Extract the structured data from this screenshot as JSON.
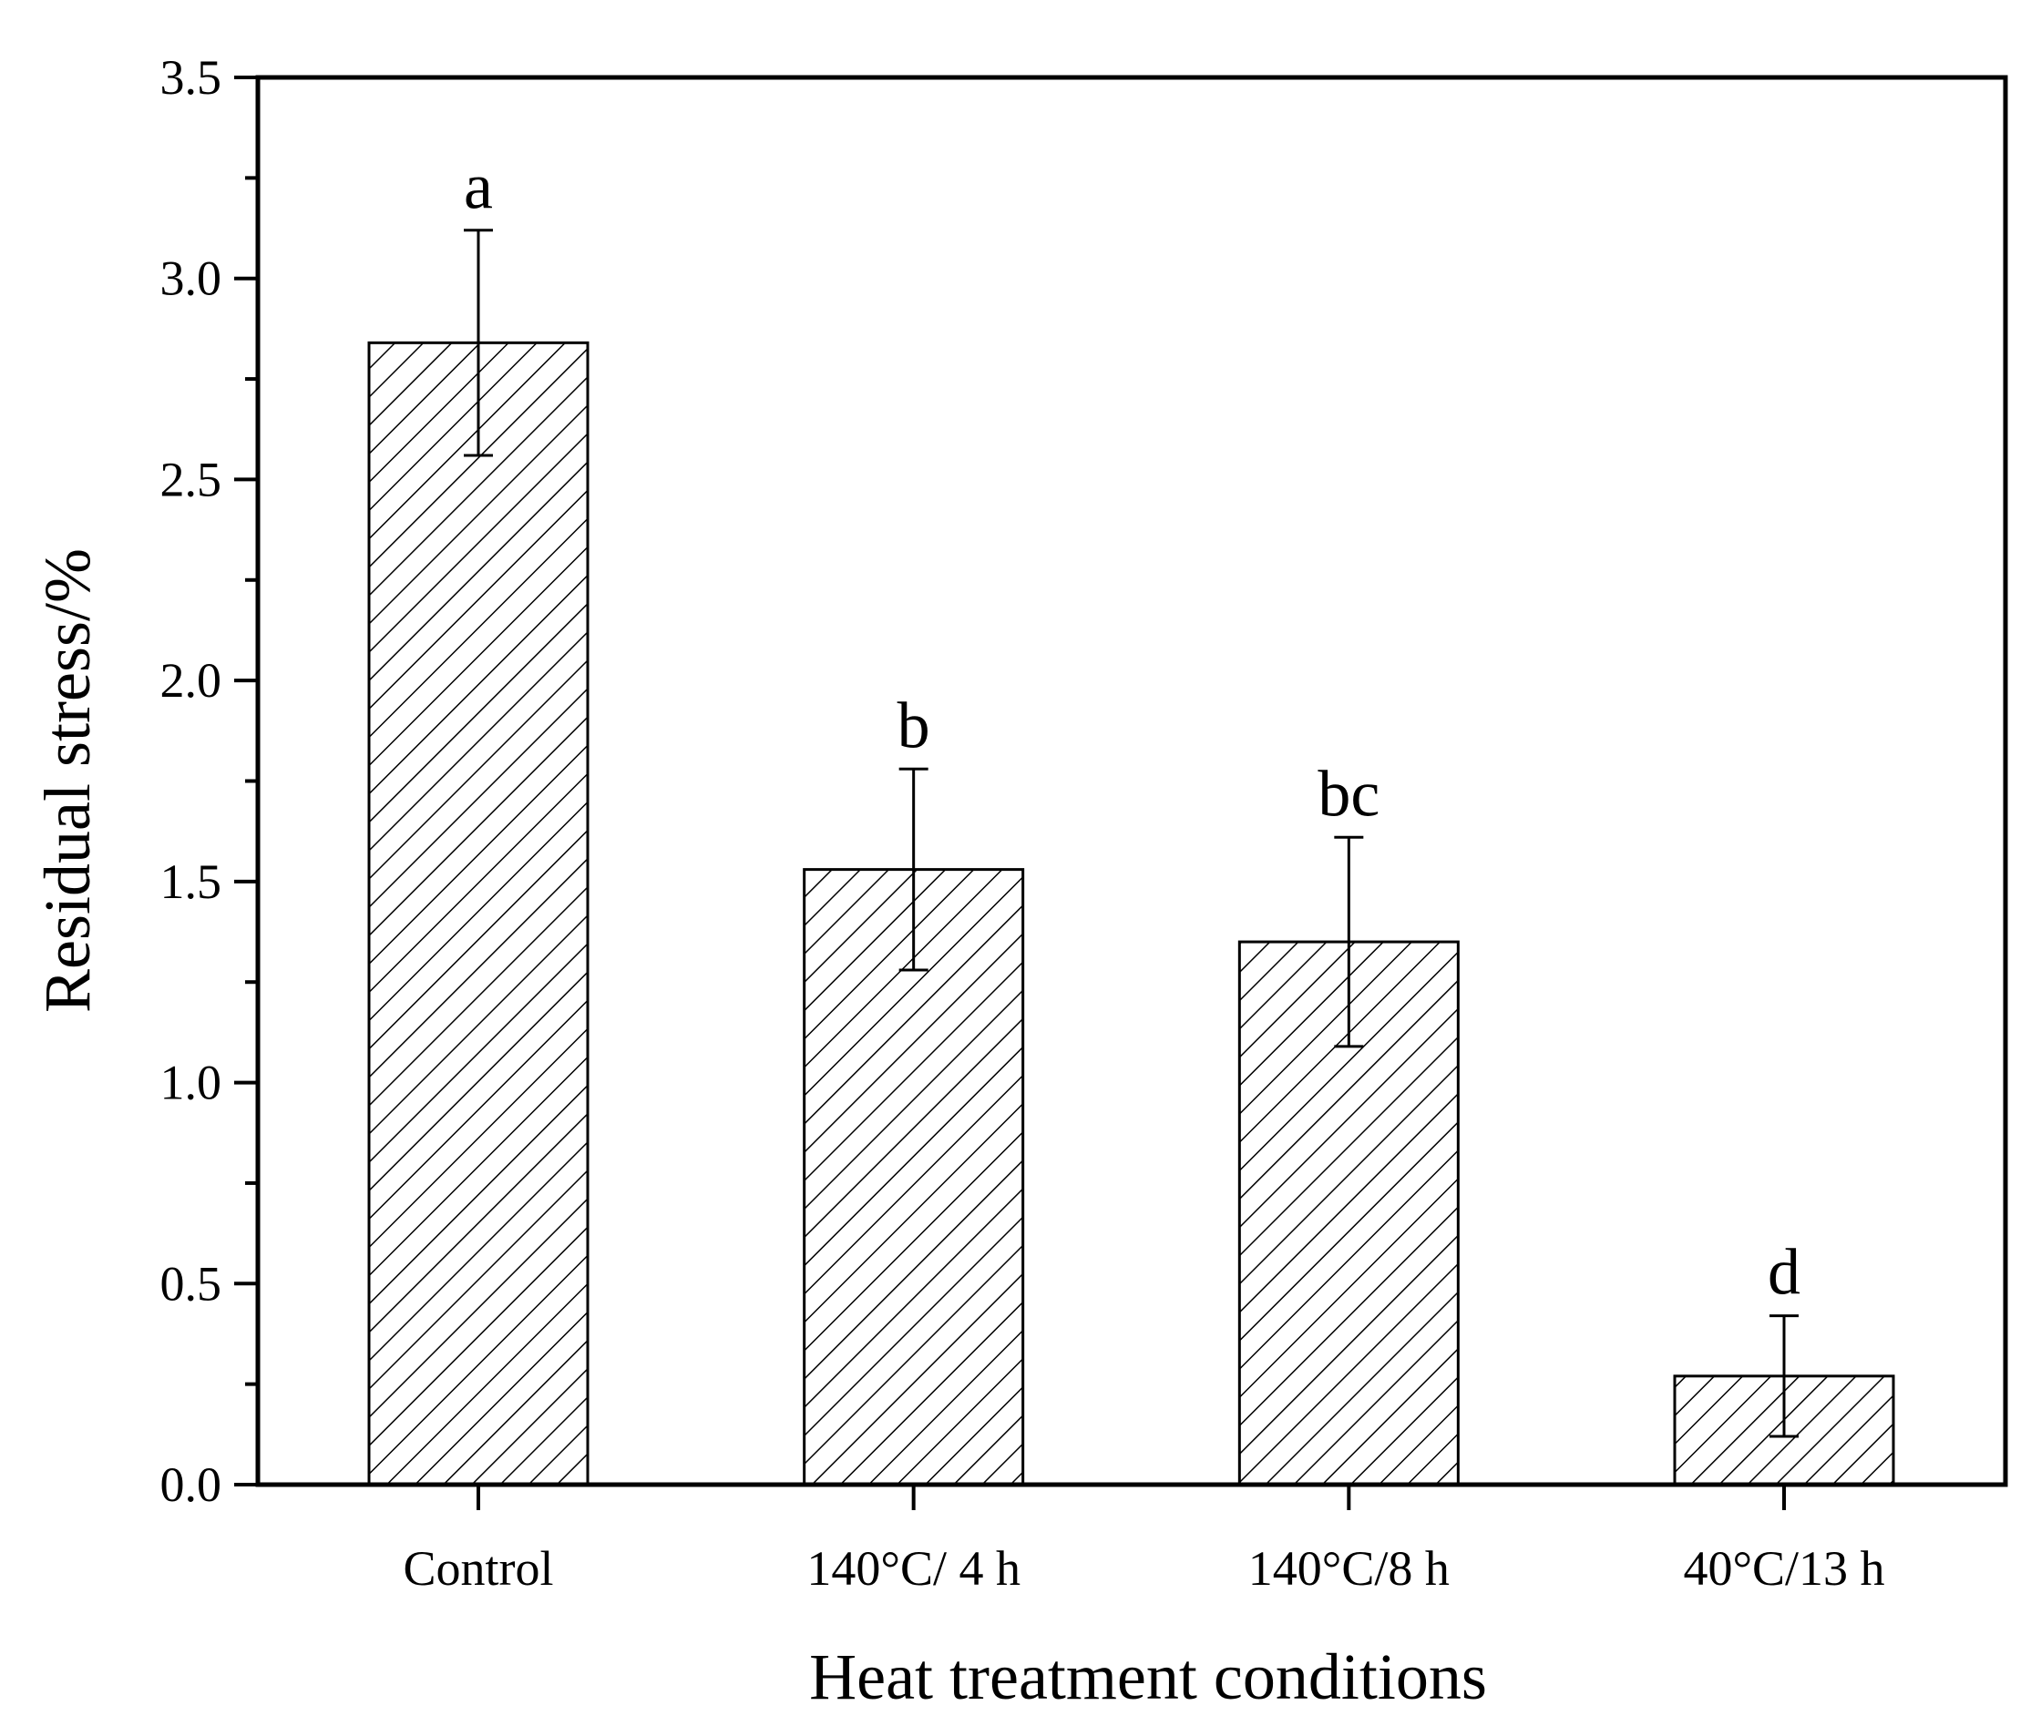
{
  "chart_data": {
    "type": "bar",
    "title": "",
    "xlabel": "Heat treatment conditions",
    "ylabel": "Residual stress/%",
    "ylim": [
      0,
      3.5
    ],
    "yticks": [
      "0.0",
      "0.5",
      "1.0",
      "1.5",
      "2.0",
      "2.5",
      "3.0",
      "3.5"
    ],
    "categories": [
      "Control",
      "140°C/ 4 h",
      "140°C/8 h",
      "40°C/13 h"
    ],
    "values": [
      2.84,
      1.53,
      1.35,
      0.27
    ],
    "errors": [
      0.28,
      0.25,
      0.26,
      0.15
    ],
    "significance": [
      "a",
      "b",
      "bc",
      "d"
    ],
    "fill": "hatched",
    "grid": false,
    "legend": false
  },
  "colors": {
    "bar_stroke": "#000000",
    "hatch": "#000000",
    "background": "#ffffff"
  }
}
